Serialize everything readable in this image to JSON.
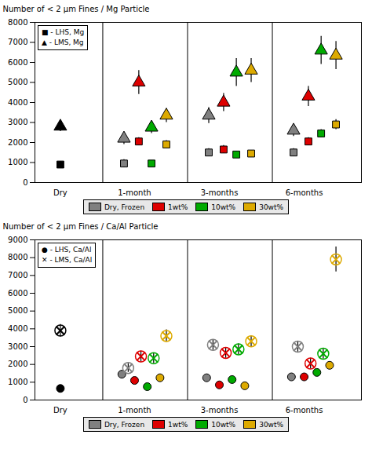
{
  "chart_data": [
    {
      "type": "scatter",
      "ylabel": "Number of < 2 μm Fines / Mg Particle",
      "xlim": [
        -0.6,
        7.1
      ],
      "xticks": [
        {
          "value": 0.0,
          "label": "Dry"
        },
        {
          "value": 1.75,
          "label": "1-month"
        },
        {
          "value": 3.75,
          "label": "3-months"
        },
        {
          "value": 5.75,
          "label": "6-months"
        }
      ],
      "ylim": [
        0,
        8000
      ],
      "yticks": [
        0,
        1000,
        2000,
        3000,
        4000,
        5000,
        6000,
        7000,
        8000
      ],
      "vlines": [
        1.0,
        3.0,
        5.0
      ],
      "legend": "upper left",
      "series": [
        {
          "name": "■ - LHS, Mg",
          "marker": "square",
          "x": [
            0.0,
            1.5,
            1.85,
            2.15,
            2.5,
            3.5,
            3.85,
            4.15,
            4.5,
            5.5,
            5.85,
            6.15,
            6.5
          ],
          "values": [
            900,
            950,
            2050,
            950,
            1900,
            1500,
            1650,
            1400,
            1450,
            1500,
            2050,
            2450,
            2900
          ],
          "yerr": [
            150,
            200,
            200,
            150,
            200,
            200,
            200,
            150,
            150,
            200,
            200,
            200,
            250
          ],
          "colors": [
            "black",
            "#808080",
            "#dd0000",
            "#00aa00",
            "#ddaa00",
            "#808080",
            "#dd0000",
            "#00aa00",
            "#ddaa00",
            "#808080",
            "#dd0000",
            "#00aa00",
            "#ddaa00"
          ]
        },
        {
          "name": "▲ - LMS, Mg",
          "marker": "triangle",
          "x": [
            0.0,
            1.5,
            1.85,
            2.15,
            2.5,
            3.5,
            3.85,
            4.15,
            4.5,
            5.5,
            5.85,
            6.15,
            6.5
          ],
          "values": [
            2800,
            2200,
            5000,
            2750,
            3350,
            3350,
            4000,
            5500,
            5600,
            2600,
            4300,
            6600,
            6350
          ],
          "yerr": [
            250,
            300,
            600,
            300,
            350,
            400,
            450,
            700,
            600,
            300,
            500,
            700,
            700
          ],
          "colors": [
            "black",
            "#808080",
            "#dd0000",
            "#00aa00",
            "#ddaa00",
            "#808080",
            "#dd0000",
            "#00aa00",
            "#ddaa00",
            "#808080",
            "#dd0000",
            "#00aa00",
            "#ddaa00"
          ]
        }
      ],
      "color_legend": [
        {
          "name": "Dry, Frozen",
          "color": "#808080"
        },
        {
          "name": "1wt%",
          "color": "#dd0000"
        },
        {
          "name": "10wt%",
          "color": "#00aa00"
        },
        {
          "name": "30wt%",
          "color": "#ddaa00"
        }
      ]
    },
    {
      "type": "scatter",
      "ylabel": "Number of < 2 μm Fines / Ca/Al Particle",
      "xlim": [
        -0.6,
        7.1
      ],
      "xticks": [
        {
          "value": 0.0,
          "label": "Dry"
        },
        {
          "value": 1.75,
          "label": "1-month"
        },
        {
          "value": 3.75,
          "label": "3-months"
        },
        {
          "value": 5.75,
          "label": "6-months"
        }
      ],
      "ylim": [
        0,
        9000
      ],
      "yticks": [
        0,
        1000,
        2000,
        3000,
        4000,
        5000,
        6000,
        7000,
        8000,
        9000
      ],
      "vlines": [
        1.0,
        3.0,
        5.0
      ],
      "legend": "upper left",
      "series": [
        {
          "name": "● - LHS, Ca/Al",
          "marker": "circle",
          "x": [
            0.0,
            1.45,
            1.75,
            2.05,
            2.35,
            3.45,
            3.75,
            4.05,
            4.35,
            5.45,
            5.75,
            6.05,
            6.35
          ],
          "values": [
            650,
            1450,
            1100,
            750,
            1250,
            1250,
            850,
            1150,
            800,
            1300,
            1300,
            1550,
            1950
          ],
          "yerr": [
            100,
            200,
            150,
            100,
            150,
            150,
            100,
            150,
            100,
            150,
            150,
            150,
            200
          ],
          "colors": [
            "black",
            "#808080",
            "#dd0000",
            "#00aa00",
            "#ddaa00",
            "#808080",
            "#dd0000",
            "#00aa00",
            "#ddaa00",
            "#808080",
            "#dd0000",
            "#00aa00",
            "#ddaa00"
          ]
        },
        {
          "name": "✕ - LMS, Ca/Al",
          "marker": "x",
          "x": [
            0.0,
            1.6,
            1.9,
            2.2,
            2.5,
            3.6,
            3.9,
            4.2,
            4.5,
            5.6,
            5.9,
            6.2,
            6.5
          ],
          "values": [
            3900,
            1800,
            2450,
            2350,
            3600,
            3100,
            2650,
            2850,
            3300,
            3000,
            2050,
            2600,
            7900
          ],
          "yerr": [
            350,
            250,
            300,
            300,
            350,
            300,
            300,
            300,
            300,
            300,
            300,
            300,
            700
          ],
          "colors": [
            "black",
            "#808080",
            "#dd0000",
            "#00aa00",
            "#ddaa00",
            "#808080",
            "#dd0000",
            "#00aa00",
            "#ddaa00",
            "#808080",
            "#dd0000",
            "#00aa00",
            "#ddaa00"
          ]
        }
      ],
      "color_legend": [
        {
          "name": "Dry, Frozen",
          "color": "#808080"
        },
        {
          "name": "1wt%",
          "color": "#dd0000"
        },
        {
          "name": "10wt%",
          "color": "#00aa00"
        },
        {
          "name": "30wt%",
          "color": "#ddaa00"
        }
      ]
    }
  ]
}
